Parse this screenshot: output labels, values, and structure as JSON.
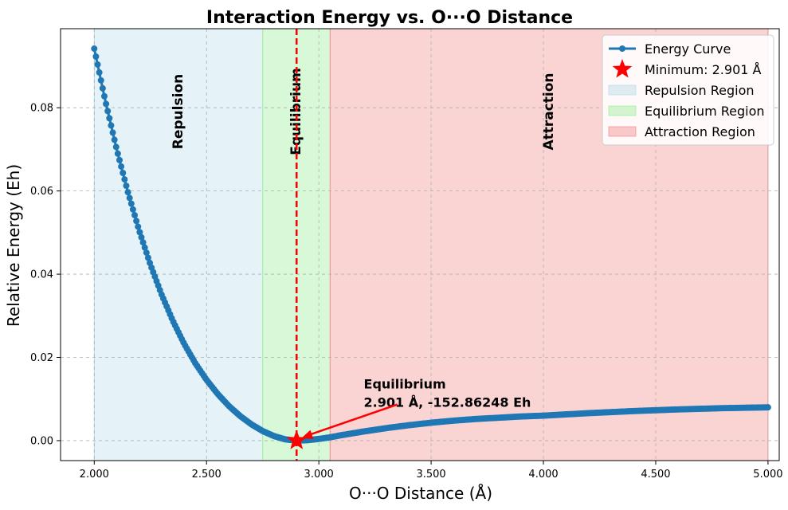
{
  "chart_data": {
    "type": "line",
    "title": "Interaction Energy vs. O···O Distance",
    "xlabel": "O···O Distance (Å)",
    "ylabel": "Relative Energy (Eh)",
    "xlim": [
      1.85,
      5.05
    ],
    "ylim": [
      -0.0048,
      0.099
    ],
    "xticks": [
      2.0,
      2.5,
      3.0,
      3.5,
      4.0,
      4.5,
      5.0
    ],
    "xtick_labels": [
      "2.000",
      "2.500",
      "3.000",
      "3.500",
      "4.000",
      "4.500",
      "5.000"
    ],
    "yticks": [
      0.0,
      0.02,
      0.04,
      0.06,
      0.08
    ],
    "ytick_labels": [
      "0.00",
      "0.02",
      "0.04",
      "0.06",
      "0.08"
    ],
    "grid": true,
    "legend_position": "top-right",
    "series": [
      {
        "name": "Energy Curve",
        "color": "#1f77b4",
        "x": [
          2.0,
          2.05,
          2.1,
          2.15,
          2.2,
          2.25,
          2.3,
          2.35,
          2.4,
          2.45,
          2.5,
          2.55,
          2.6,
          2.65,
          2.7,
          2.75,
          2.8,
          2.85,
          2.9,
          2.901,
          2.95,
          3.0,
          3.05,
          3.1,
          3.2,
          3.3,
          3.4,
          3.5,
          3.6,
          3.7,
          3.8,
          3.9,
          4.0,
          4.2,
          4.4,
          4.6,
          4.8,
          5.0
        ],
        "y": [
          0.0942,
          0.0815,
          0.07,
          0.0597,
          0.0505,
          0.0423,
          0.0351,
          0.0288,
          0.0233,
          0.0186,
          0.0146,
          0.0112,
          0.0083,
          0.0059,
          0.0039,
          0.0023,
          0.0011,
          0.0003,
          0.0,
          0.0,
          0.0001,
          0.0004,
          0.0008,
          0.0013,
          0.0022,
          0.003,
          0.0037,
          0.0043,
          0.0048,
          0.0052,
          0.0055,
          0.0058,
          0.006,
          0.0066,
          0.0071,
          0.0075,
          0.0078,
          0.008
        ]
      }
    ],
    "minimum": {
      "x": 2.901,
      "y": 0.0,
      "label": "Minimum: 2.901 Å",
      "color": "#ff0000"
    },
    "vline_x": 2.901,
    "regions": [
      {
        "name": "Repulsion Region",
        "label": "Repulsion",
        "from": 2.0,
        "to": 2.75,
        "color": "#add8e6"
      },
      {
        "name": "Equilibrium Region",
        "label": "Equilibrium",
        "from": 2.75,
        "to": 3.05,
        "color": "#90ee90"
      },
      {
        "name": "Attraction Region",
        "label": "Attraction",
        "from": 3.05,
        "to": 5.0,
        "color": "#f08080"
      }
    ],
    "annotation": {
      "line1": "Equilibrium",
      "line2": "2.901 Å, -152.86248 Eh",
      "text_x": 3.2,
      "text_y": 0.0135,
      "point_x": 2.901,
      "point_y": 0.0
    },
    "legend": [
      {
        "label": "Energy Curve",
        "kind": "line-marker",
        "color": "#1f77b4"
      },
      {
        "label": "Minimum: 2.901 Å",
        "kind": "star",
        "color": "#ff0000"
      },
      {
        "label": "Repulsion Region",
        "kind": "patch",
        "color": "#add8e6"
      },
      {
        "label": "Equilibrium Region",
        "kind": "patch",
        "color": "#90ee90"
      },
      {
        "label": "Attraction Region",
        "kind": "patch",
        "color": "#f08080"
      }
    ]
  }
}
